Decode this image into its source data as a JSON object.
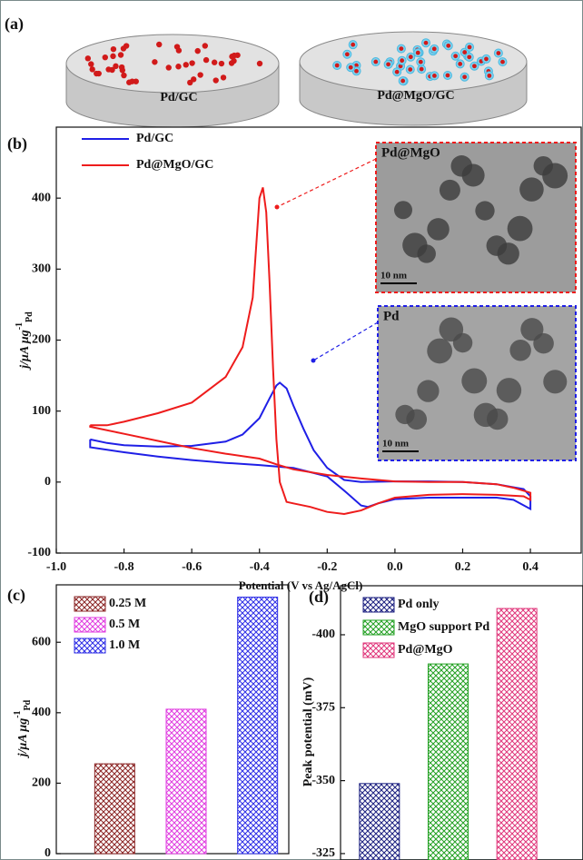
{
  "panel_a": {
    "label": "(a)",
    "samples": [
      "Pd/GC",
      "Pd@MgO/GC"
    ]
  },
  "chart_data": [
    {
      "type": "line",
      "panel": "(b)",
      "xlabel": "Potential (V vs Ag/AgCl)",
      "ylabel": {
        "text": "j/μA μg",
        "sup": "-1",
        "sub": "Pd"
      },
      "xlim": [
        -1.0,
        0.55
      ],
      "ylim": [
        -100,
        500
      ],
      "xticks": [
        {
          "value": -1.0,
          "label": "-1.0"
        },
        -0.8,
        -0.6,
        -0.4,
        -0.2,
        {
          "value": 0,
          "label": "0.0"
        },
        0.2,
        0.4
      ],
      "yticks": [
        -100,
        0,
        100,
        200,
        300,
        400
      ],
      "grid": false,
      "legend": "upper left",
      "series": [
        {
          "name": "Pd/GC",
          "color": "#1f1fe6",
          "x": [
            -0.9,
            -0.85,
            -0.8,
            -0.7,
            -0.6,
            -0.5,
            -0.45,
            -0.4,
            -0.37,
            -0.35,
            -0.34,
            -0.32,
            -0.3,
            -0.27,
            -0.24,
            -0.2,
            -0.15,
            -0.1,
            0,
            0.1,
            0.2,
            0.3,
            0.38,
            0.4,
            0.4,
            0.35,
            0.3,
            0.2,
            0.1,
            0,
            -0.05,
            -0.08,
            -0.1,
            -0.15,
            -0.2,
            -0.3,
            -0.4,
            -0.5,
            -0.6,
            -0.7,
            -0.8,
            -0.9,
            -0.9
          ],
          "values": [
            60,
            55,
            52,
            50,
            51,
            57,
            67,
            90,
            118,
            136,
            140,
            132,
            108,
            75,
            45,
            20,
            3,
            0,
            1,
            1,
            0,
            -3,
            -10,
            -20,
            -38,
            -25,
            -22,
            -22,
            -22,
            -24,
            -30,
            -35,
            -33,
            -12,
            8,
            20,
            24,
            27,
            31,
            36,
            42,
            49,
            60
          ]
        },
        {
          "name": "Pd@MgO/GC",
          "color": "#ee1c1c",
          "x": [
            -0.9,
            -0.85,
            -0.8,
            -0.7,
            -0.6,
            -0.5,
            -0.45,
            -0.42,
            -0.4,
            -0.39,
            -0.38,
            -0.37,
            -0.36,
            -0.35,
            -0.34,
            -0.32,
            -0.3,
            -0.25,
            -0.2,
            -0.15,
            -0.1,
            -0.05,
            0,
            0.1,
            0.2,
            0.3,
            0.38,
            0.4,
            0.4,
            0.35,
            0.3,
            0.2,
            0.1,
            0,
            -0.1,
            -0.2,
            -0.3,
            -0.35,
            -0.4,
            -0.5,
            -0.6,
            -0.7,
            -0.8,
            -0.9,
            -0.9
          ],
          "values": [
            80,
            80,
            85,
            97,
            112,
            148,
            190,
            260,
            400,
            415,
            380,
            280,
            160,
            60,
            0,
            -28,
            -30,
            -35,
            -42,
            -45,
            -40,
            -30,
            -22,
            -18,
            -17,
            -18,
            -20,
            -25,
            -15,
            -8,
            -3,
            0,
            0,
            1,
            5,
            10,
            18,
            25,
            33,
            40,
            48,
            58,
            68,
            78,
            80
          ]
        }
      ],
      "insets": [
        {
          "label": "Pd@MgO",
          "scale": "10 nm",
          "color": "#ee1c1c"
        },
        {
          "label": "Pd",
          "scale": "10 nm",
          "color": "#1f1fe6"
        }
      ]
    },
    {
      "type": "bar",
      "panel": "(c)",
      "ylabel": {
        "text": "j/μA μg",
        "sup": "-1",
        "sub": "Pd"
      },
      "categories": [
        "0.25 M",
        "0.5 M",
        "1.0 M"
      ],
      "values": [
        255,
        410,
        728
      ],
      "colors": [
        "#8b2525",
        "#e03ce0",
        "#2d2de6"
      ],
      "ylim": [
        0,
        763
      ],
      "yticks": [
        0,
        200,
        400,
        600
      ],
      "legend": "upper left"
    },
    {
      "type": "bar",
      "panel": "(d)",
      "ylabel": "Peak potential (mV)",
      "categories": [
        "Pd only",
        "MgO support Pd",
        "Pd@MgO"
      ],
      "values": [
        -349,
        -390,
        -409
      ],
      "colors": [
        "#1b1f80",
        "#22a022",
        "#e0357a"
      ],
      "ylim": [
        -322.8,
        -416.8
      ],
      "yticks": [
        -400,
        -375,
        -350,
        -325
      ],
      "legend": "upper left"
    }
  ]
}
